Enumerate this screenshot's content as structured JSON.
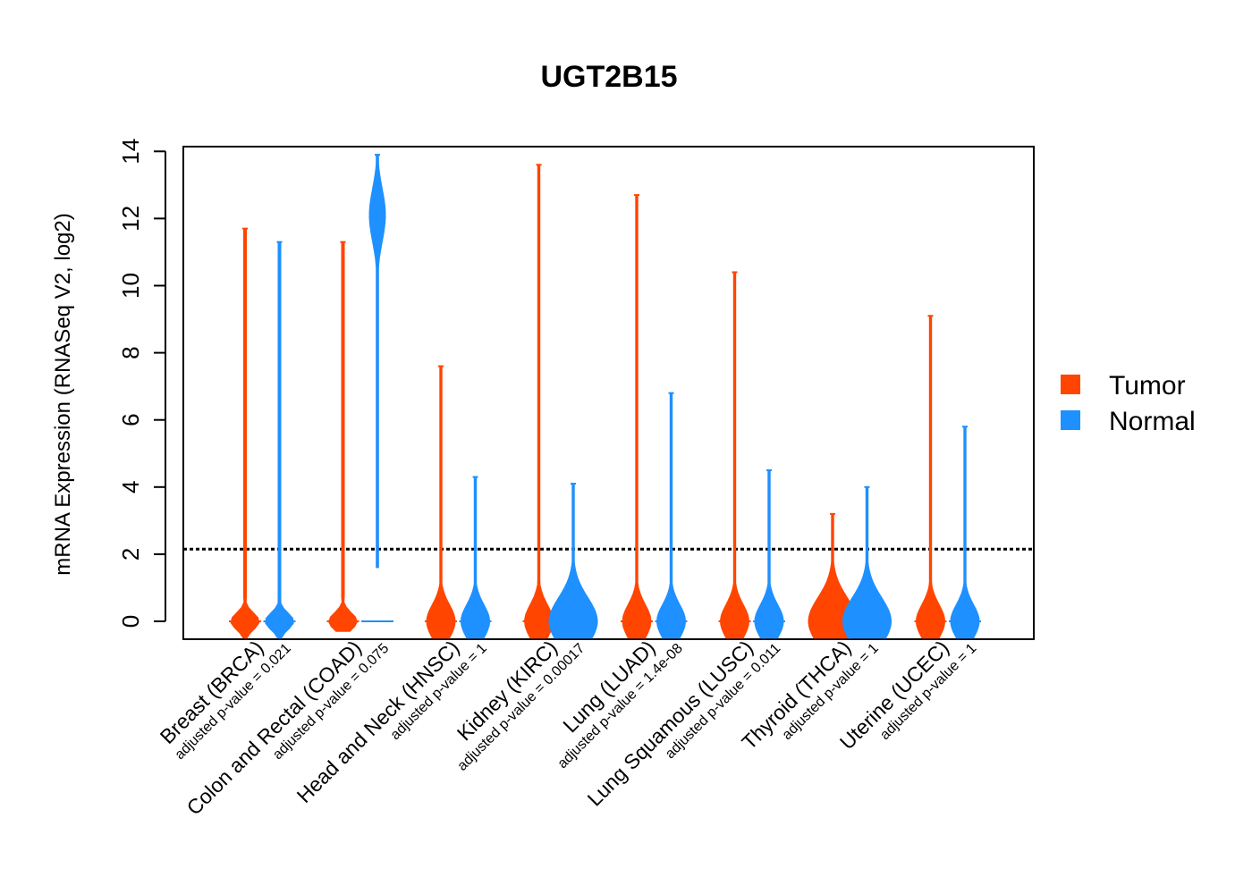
{
  "chart_data": {
    "type": "violin",
    "title": "UGT2B15",
    "ylabel": "mRNA Expression (RNASeq V2, log2)",
    "ylim": [
      -0.55,
      14.2
    ],
    "yticks": [
      0,
      2,
      4,
      6,
      8,
      10,
      12,
      14
    ],
    "threshold": 2.15,
    "categories": [
      {
        "label": "Breast (BRCA)",
        "pvalue": "adjusted p-value = 0.021",
        "tumor": {
          "min": -0.5,
          "max": 11.7,
          "shape": "spike"
        },
        "normal": {
          "min": -0.5,
          "max": 11.3,
          "shape": "spike"
        }
      },
      {
        "label": "Colon and Rectal (COAD)",
        "pvalue": "adjusted p-value = 0.075",
        "tumor": {
          "min": -0.3,
          "max": 11.3,
          "shape": "spike"
        },
        "normal": {
          "min": 1.6,
          "max": 13.9,
          "shape": "high"
        }
      },
      {
        "label": "Head and Neck (HNSC)",
        "pvalue": "adjusted p-value = 1",
        "tumor": {
          "min": -0.5,
          "max": 7.6,
          "shape": "bulb"
        },
        "normal": {
          "min": -0.5,
          "max": 4.3,
          "shape": "bulb"
        }
      },
      {
        "label": "Kidney (KIRC)",
        "pvalue": "adjusted p-value = 0.00017",
        "tumor": {
          "min": -0.5,
          "max": 13.6,
          "shape": "bulb"
        },
        "normal": {
          "min": -0.5,
          "max": 4.1,
          "shape": "wide"
        }
      },
      {
        "label": "Lung (LUAD)",
        "pvalue": "adjusted p-value = 1.4e-08",
        "tumor": {
          "min": -0.5,
          "max": 12.7,
          "shape": "bulb"
        },
        "normal": {
          "min": -0.5,
          "max": 6.8,
          "shape": "bulb"
        }
      },
      {
        "label": "Lung Squamous (LUSC)",
        "pvalue": "adjusted p-value = 0.011",
        "tumor": {
          "min": -0.5,
          "max": 10.4,
          "shape": "bulb"
        },
        "normal": {
          "min": -0.5,
          "max": 4.5,
          "shape": "bulb"
        }
      },
      {
        "label": "Thyroid (THCA)",
        "pvalue": "adjusted p-value = 1",
        "tumor": {
          "min": -0.5,
          "max": 3.2,
          "shape": "wide"
        },
        "normal": {
          "min": -0.5,
          "max": 4.0,
          "shape": "wide"
        }
      },
      {
        "label": "Uterine (UCEC)",
        "pvalue": "adjusted p-value = 1",
        "tumor": {
          "min": -0.5,
          "max": 9.1,
          "shape": "bulb"
        },
        "normal": {
          "min": -0.5,
          "max": 5.8,
          "shape": "bulb"
        }
      }
    ],
    "legend": [
      {
        "name": "Tumor",
        "color": "#ff4500"
      },
      {
        "name": "Normal",
        "color": "#1e90ff"
      }
    ],
    "legend_position": "right"
  }
}
